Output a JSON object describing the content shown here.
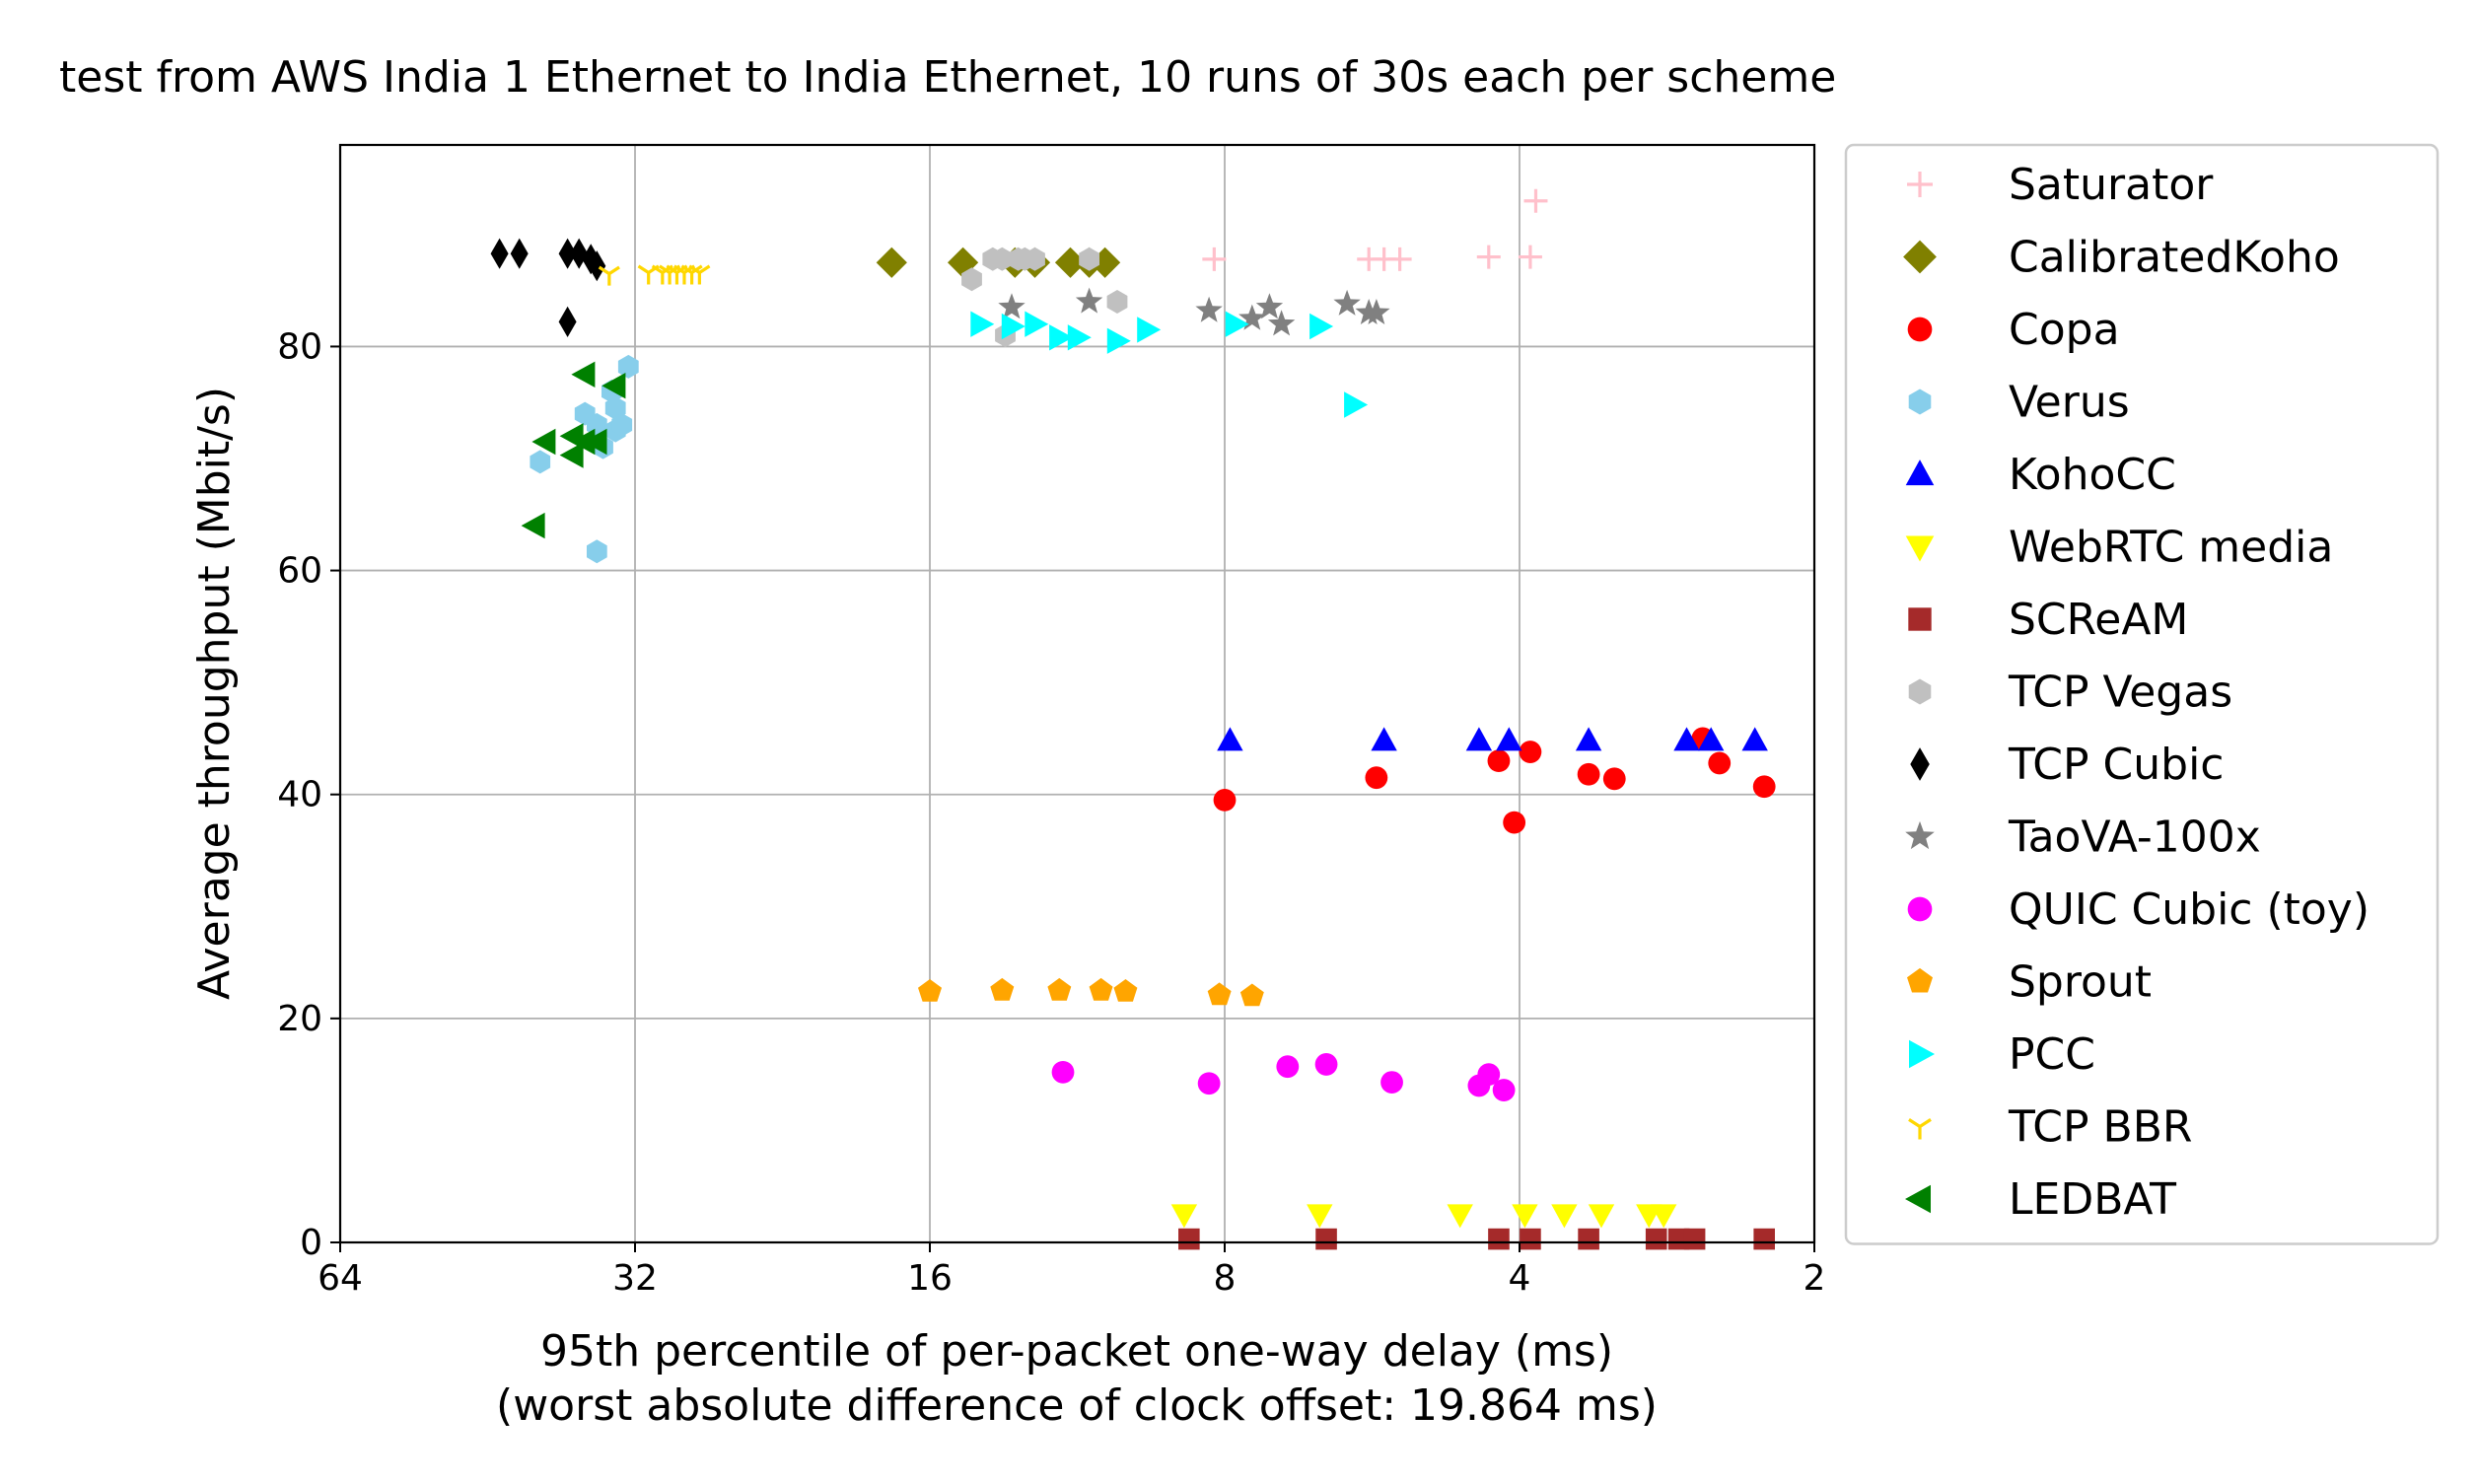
{
  "chart_data": {
    "type": "scatter",
    "title": "test from AWS India 1 Ethernet to India Ethernet, 10 runs of 30s each per scheme",
    "xlabel": "95th percentile of per-packet one-way delay (ms)",
    "xlabel_sub": "(worst absolute difference of clock offset: 19.864 ms)",
    "ylabel": "Average throughput (Mbit/s)",
    "x_scale": "log2",
    "x_inverted": true,
    "xlim": [
      64,
      2
    ],
    "ylim": [
      0,
      98
    ],
    "x_ticks": [
      64,
      32,
      16,
      8,
      4,
      2
    ],
    "y_ticks": [
      0,
      20,
      40,
      60,
      80
    ],
    "grid": true,
    "legend_position": "outside-right",
    "series": [
      {
        "name": "Saturator",
        "marker": "plus",
        "color": "#ffc0cb",
        "points": [
          [
            8.2,
            87.8
          ],
          [
            5.7,
            87.8
          ],
          [
            5.5,
            87.8
          ],
          [
            5.3,
            87.8
          ],
          [
            4.3,
            88.0
          ],
          [
            3.9,
            88.0
          ],
          [
            3.85,
            93.0
          ]
        ]
      },
      {
        "name": "CalibratedKoho",
        "marker": "diamond",
        "color": "#808000",
        "points": [
          [
            17.5,
            87.5
          ],
          [
            14.8,
            87.5
          ],
          [
            13.1,
            87.5
          ],
          [
            12.5,
            87.5
          ],
          [
            11.5,
            87.5
          ],
          [
            11.0,
            87.5
          ],
          [
            10.6,
            87.5
          ]
        ]
      },
      {
        "name": "Copa",
        "marker": "circle",
        "color": "#ff0000",
        "points": [
          [
            8.0,
            39.5
          ],
          [
            5.6,
            41.5
          ],
          [
            4.2,
            43.0
          ],
          [
            3.9,
            43.8
          ],
          [
            4.05,
            37.5
          ],
          [
            3.4,
            41.8
          ],
          [
            3.2,
            41.4
          ],
          [
            2.6,
            45.0
          ],
          [
            2.5,
            42.8
          ],
          [
            2.25,
            40.7
          ]
        ]
      },
      {
        "name": "Verus",
        "marker": "hexagon",
        "color": "#87ceeb",
        "points": [
          [
            36.0,
            74.0
          ],
          [
            35.0,
            73.0
          ],
          [
            34.5,
            71.0
          ],
          [
            33.8,
            76.0
          ],
          [
            33.5,
            74.5
          ],
          [
            33.5,
            72.5
          ],
          [
            33.0,
            73.0
          ],
          [
            32.5,
            78.2
          ],
          [
            40.0,
            69.7
          ],
          [
            35.0,
            61.7
          ]
        ]
      },
      {
        "name": "KohoCC",
        "marker": "triangle-up",
        "color": "#0000ff",
        "points": [
          [
            7.9,
            44.8
          ],
          [
            5.5,
            44.8
          ],
          [
            4.4,
            44.8
          ],
          [
            4.1,
            44.8
          ],
          [
            3.4,
            44.8
          ],
          [
            2.7,
            44.8
          ],
          [
            2.55,
            44.8
          ],
          [
            2.3,
            44.8
          ]
        ]
      },
      {
        "name": "WebRTC media",
        "marker": "triangle-down",
        "color": "#ffff00",
        "points": [
          [
            8.8,
            2.5
          ],
          [
            6.4,
            2.5
          ],
          [
            4.6,
            2.5
          ],
          [
            3.95,
            2.5
          ],
          [
            3.6,
            2.5
          ],
          [
            3.3,
            2.5
          ],
          [
            2.95,
            2.5
          ],
          [
            2.85,
            2.5
          ]
        ]
      },
      {
        "name": "SCReAM",
        "marker": "square",
        "color": "#a52a2a",
        "points": [
          [
            8.7,
            0.3
          ],
          [
            6.3,
            0.3
          ],
          [
            4.2,
            0.3
          ],
          [
            3.9,
            0.3
          ],
          [
            3.4,
            0.3
          ],
          [
            2.9,
            0.3
          ],
          [
            2.75,
            0.3
          ],
          [
            2.65,
            0.3
          ],
          [
            2.25,
            0.3
          ]
        ]
      },
      {
        "name": "TCP Vegas",
        "marker": "hexagon",
        "color": "#c0c0c0",
        "points": [
          [
            14.5,
            86.0
          ],
          [
            13.8,
            87.8
          ],
          [
            13.5,
            87.8
          ],
          [
            13.0,
            87.8
          ],
          [
            12.8,
            87.8
          ],
          [
            12.5,
            87.8
          ],
          [
            11.0,
            87.8
          ],
          [
            10.3,
            84.0
          ],
          [
            13.4,
            81.0
          ]
        ]
      },
      {
        "name": "TCP Cubic",
        "marker": "thin-diamond",
        "color": "#000000",
        "points": [
          [
            44.0,
            88.3
          ],
          [
            42.0,
            88.3
          ],
          [
            37.5,
            88.3
          ],
          [
            36.5,
            88.3
          ],
          [
            35.5,
            87.8
          ],
          [
            35.0,
            87.2
          ],
          [
            37.5,
            82.2
          ]
        ]
      },
      {
        "name": "TaoVA-100x",
        "marker": "star",
        "color": "#808080",
        "points": [
          [
            13.2,
            83.5
          ],
          [
            11.0,
            84.0
          ],
          [
            8.3,
            83.2
          ],
          [
            7.5,
            82.5
          ],
          [
            7.2,
            83.5
          ],
          [
            7.0,
            82.0
          ],
          [
            6.0,
            83.8
          ],
          [
            5.7,
            83.0
          ],
          [
            5.6,
            83.0
          ]
        ]
      },
      {
        "name": "QUIC Cubic (toy)",
        "marker": "circle",
        "color": "#ff00ff",
        "points": [
          [
            11.7,
            15.2
          ],
          [
            8.3,
            14.2
          ],
          [
            6.9,
            15.7
          ],
          [
            6.3,
            15.9
          ],
          [
            5.4,
            14.3
          ],
          [
            4.4,
            14.0
          ],
          [
            4.3,
            15.0
          ],
          [
            4.15,
            13.6
          ]
        ]
      },
      {
        "name": "Sprout",
        "marker": "pentagon",
        "color": "#ffa500",
        "points": [
          [
            16.0,
            22.4
          ],
          [
            13.5,
            22.5
          ],
          [
            11.8,
            22.5
          ],
          [
            10.7,
            22.5
          ],
          [
            10.1,
            22.4
          ],
          [
            8.1,
            22.1
          ],
          [
            7.5,
            22.0
          ]
        ]
      },
      {
        "name": "PCC",
        "marker": "triangle-right",
        "color": "#00ffff",
        "points": [
          [
            14.2,
            82.0
          ],
          [
            13.2,
            81.8
          ],
          [
            12.5,
            82.0
          ],
          [
            11.8,
            80.8
          ],
          [
            11.3,
            80.8
          ],
          [
            10.3,
            80.5
          ],
          [
            9.6,
            81.5
          ],
          [
            7.8,
            82.0
          ],
          [
            6.4,
            81.8
          ],
          [
            5.9,
            74.8
          ]
        ]
      },
      {
        "name": "TCP BBR",
        "marker": "tri-down",
        "color": "#ffd700",
        "points": [
          [
            34.0,
            86.5
          ],
          [
            31.0,
            86.6
          ],
          [
            30.0,
            86.6
          ],
          [
            29.5,
            86.6
          ],
          [
            29.0,
            86.6
          ],
          [
            28.5,
            86.6
          ],
          [
            28.0,
            86.6
          ],
          [
            27.5,
            86.6
          ]
        ]
      },
      {
        "name": "LEDBAT",
        "marker": "triangle-left",
        "color": "#008000",
        "points": [
          [
            39.5,
            71.5
          ],
          [
            37.0,
            72.0
          ],
          [
            36.0,
            71.5
          ],
          [
            35.0,
            71.5
          ],
          [
            37.0,
            70.3
          ],
          [
            36.0,
            77.5
          ],
          [
            33.5,
            76.5
          ],
          [
            40.5,
            64.0
          ]
        ]
      }
    ]
  }
}
